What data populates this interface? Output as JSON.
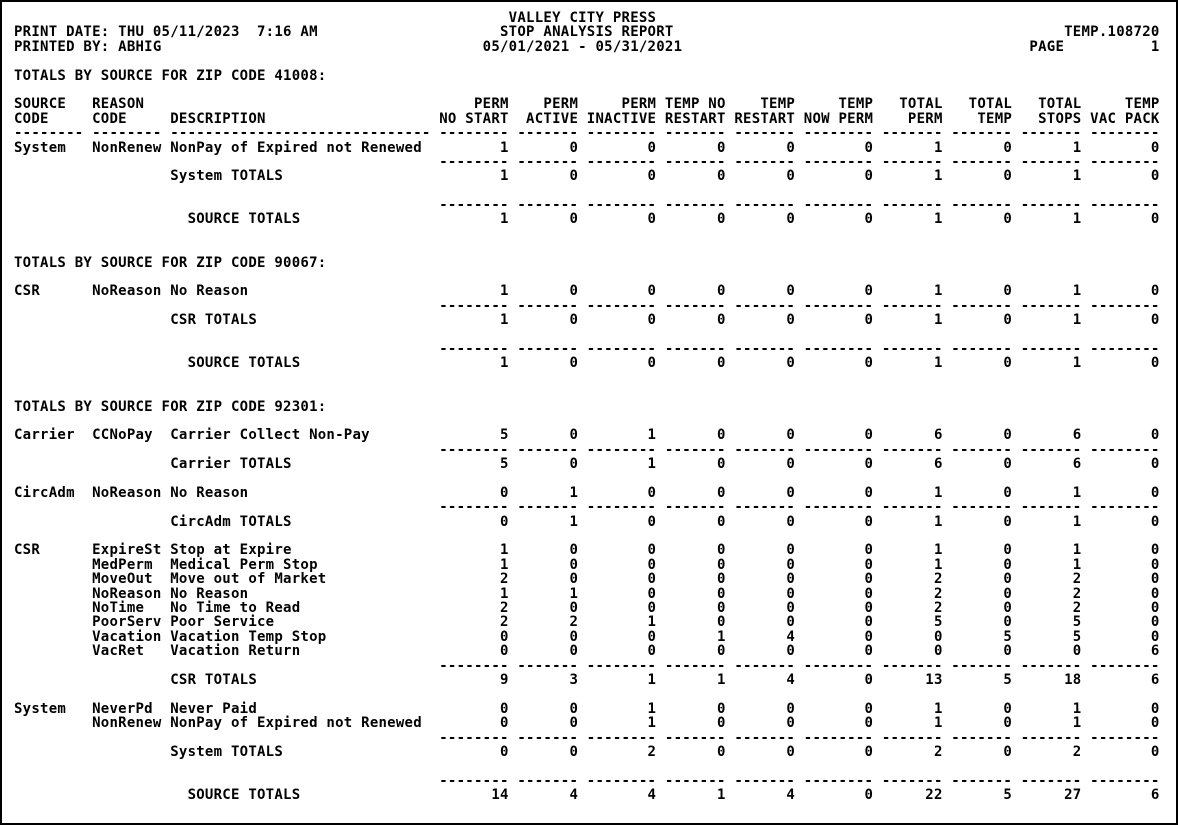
{
  "report_header": {
    "company": "VALLEY CITY PRESS",
    "report_title": "STOP ANALYSIS REPORT",
    "date_range": "05/01/2021 - 05/31/2021",
    "print_date_label": "PRINT DATE:",
    "print_date_value": "THU 05/11/2023  7:16 AM",
    "printed_by_label": "PRINTED BY:",
    "printed_by_value": "ABHIG",
    "reference": "TEMP.108720",
    "page_label": "PAGE",
    "page_number": "1"
  },
  "columns": {
    "left": [
      {
        "line1": "SOURCE",
        "line2": "CODE"
      },
      {
        "line1": "REASON",
        "line2": "CODE"
      },
      {
        "line1": "",
        "line2": "DESCRIPTION"
      }
    ],
    "numeric": [
      {
        "line1": "PERM",
        "line2": "NO START"
      },
      {
        "line1": "PERM",
        "line2": "ACTIVE"
      },
      {
        "line1": "PERM",
        "line2": "INACTIVE"
      },
      {
        "line1": "TEMP NO",
        "line2": "RESTART"
      },
      {
        "line1": "TEMP",
        "line2": "RESTART"
      },
      {
        "line1": "TEMP",
        "line2": "NOW PERM"
      },
      {
        "line1": "TOTAL",
        "line2": "PERM"
      },
      {
        "line1": "TOTAL",
        "line2": "TEMP"
      },
      {
        "line1": "TOTAL",
        "line2": "STOPS"
      },
      {
        "line1": "TEMP",
        "line2": "VAC PACK"
      }
    ]
  },
  "sections": [
    {
      "heading": "TOTALS BY SOURCE FOR ZIP CODE 41008:",
      "show_column_headers": true,
      "groups": [
        {
          "source": "System",
          "rows": [
            {
              "reason": "NonRenew",
              "description": "NonPay of Expired not Renewed",
              "values": [
                1,
                0,
                0,
                0,
                0,
                0,
                1,
                0,
                1,
                0
              ]
            }
          ],
          "totals_label": "System TOTALS",
          "totals": [
            1,
            0,
            0,
            0,
            0,
            0,
            1,
            0,
            1,
            0
          ]
        }
      ],
      "source_totals_label": "SOURCE TOTALS",
      "source_totals": [
        1,
        0,
        0,
        0,
        0,
        0,
        1,
        0,
        1,
        0
      ]
    },
    {
      "heading": "TOTALS BY SOURCE FOR ZIP CODE 90067:",
      "show_column_headers": false,
      "groups": [
        {
          "source": "CSR",
          "rows": [
            {
              "reason": "NoReason",
              "description": "No Reason",
              "values": [
                1,
                0,
                0,
                0,
                0,
                0,
                1,
                0,
                1,
                0
              ]
            }
          ],
          "totals_label": "CSR TOTALS",
          "totals": [
            1,
            0,
            0,
            0,
            0,
            0,
            1,
            0,
            1,
            0
          ]
        }
      ],
      "source_totals_label": "SOURCE TOTALS",
      "source_totals": [
        1,
        0,
        0,
        0,
        0,
        0,
        1,
        0,
        1,
        0
      ]
    },
    {
      "heading": "TOTALS BY SOURCE FOR ZIP CODE 92301:",
      "show_column_headers": false,
      "groups": [
        {
          "source": "Carrier",
          "rows": [
            {
              "reason": "CCNoPay",
              "description": "Carrier Collect Non-Pay",
              "values": [
                5,
                0,
                1,
                0,
                0,
                0,
                6,
                0,
                6,
                0
              ]
            }
          ],
          "totals_label": "Carrier TOTALS",
          "totals": [
            5,
            0,
            1,
            0,
            0,
            0,
            6,
            0,
            6,
            0
          ]
        },
        {
          "source": "CircAdm",
          "rows": [
            {
              "reason": "NoReason",
              "description": "No Reason",
              "values": [
                0,
                1,
                0,
                0,
                0,
                0,
                1,
                0,
                1,
                0
              ]
            }
          ],
          "totals_label": "CircAdm TOTALS",
          "totals": [
            0,
            1,
            0,
            0,
            0,
            0,
            1,
            0,
            1,
            0
          ]
        },
        {
          "source": "CSR",
          "rows": [
            {
              "reason": "ExpireSt",
              "description": "Stop at Expire",
              "values": [
                1,
                0,
                0,
                0,
                0,
                0,
                1,
                0,
                1,
                0
              ]
            },
            {
              "reason": "MedPerm",
              "description": "Medical Perm Stop",
              "values": [
                1,
                0,
                0,
                0,
                0,
                0,
                1,
                0,
                1,
                0
              ]
            },
            {
              "reason": "MoveOut",
              "description": "Move out of Market",
              "values": [
                2,
                0,
                0,
                0,
                0,
                0,
                2,
                0,
                2,
                0
              ]
            },
            {
              "reason": "NoReason",
              "description": "No Reason",
              "values": [
                1,
                1,
                0,
                0,
                0,
                0,
                2,
                0,
                2,
                0
              ]
            },
            {
              "reason": "NoTime",
              "description": "No Time to Read",
              "values": [
                2,
                0,
                0,
                0,
                0,
                0,
                2,
                0,
                2,
                0
              ]
            },
            {
              "reason": "PoorServ",
              "description": "Poor Service",
              "values": [
                2,
                2,
                1,
                0,
                0,
                0,
                5,
                0,
                5,
                0
              ]
            },
            {
              "reason": "Vacation",
              "description": "Vacation Temp Stop",
              "values": [
                0,
                0,
                0,
                1,
                4,
                0,
                0,
                5,
                5,
                0
              ]
            },
            {
              "reason": "VacRet",
              "description": "Vacation Return",
              "values": [
                0,
                0,
                0,
                0,
                0,
                0,
                0,
                0,
                0,
                6
              ]
            }
          ],
          "totals_label": "CSR TOTALS",
          "totals": [
            9,
            3,
            1,
            1,
            4,
            0,
            13,
            5,
            18,
            6
          ]
        },
        {
          "source": "System",
          "rows": [
            {
              "reason": "NeverPd",
              "description": "Never Paid",
              "values": [
                0,
                0,
                1,
                0,
                0,
                0,
                1,
                0,
                1,
                0
              ]
            },
            {
              "reason": "NonRenew",
              "description": "NonPay of Expired not Renewed",
              "values": [
                0,
                0,
                1,
                0,
                0,
                0,
                1,
                0,
                1,
                0
              ]
            }
          ],
          "totals_label": "System TOTALS",
          "totals": [
            0,
            0,
            2,
            0,
            0,
            0,
            2,
            0,
            2,
            0
          ]
        }
      ],
      "source_totals_label": "SOURCE TOTALS",
      "source_totals": [
        14,
        4,
        4,
        1,
        4,
        0,
        22,
        5,
        27,
        6
      ]
    }
  ]
}
